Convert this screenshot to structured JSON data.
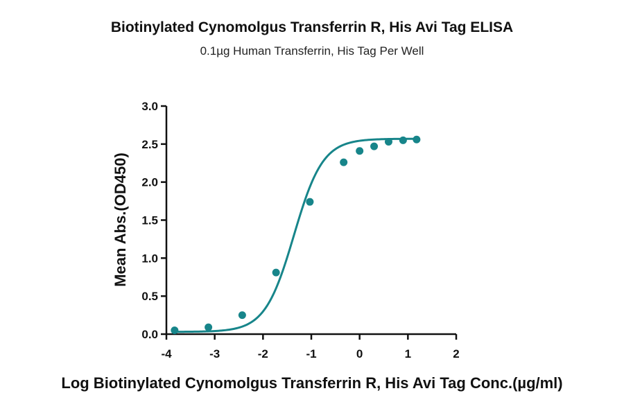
{
  "chart_data": {
    "type": "scatter",
    "title": "Biotinylated Cynomolgus Transferrin R, His Avi Tag ELISA",
    "subtitle": "0.1µg Human Transferrin, His Tag Per Well",
    "xlabel": "Log Biotinylated Cynomolgus Transferrin R, His Avi Tag Conc.(µg/ml)",
    "ylabel": "Mean Abs.(OD450)",
    "xlim": [
      -4,
      2
    ],
    "ylim": [
      0,
      3.0
    ],
    "x_ticks": [
      -4,
      -3,
      -2,
      -1,
      0,
      1,
      2
    ],
    "x_tick_labels": [
      "-4",
      "-3",
      "-2",
      "-1",
      "0",
      "1",
      "2"
    ],
    "y_ticks": [
      0.0,
      0.5,
      1.0,
      1.5,
      2.0,
      2.5,
      3.0
    ],
    "y_tick_labels": [
      "0.0",
      "0.5",
      "1.0",
      "1.5",
      "2.0",
      "2.5",
      "3.0"
    ],
    "color": "#17858a",
    "series": [
      {
        "x": [
          -3.83,
          -3.13,
          -2.43,
          -1.73,
          -1.03,
          -0.33,
          0.0,
          0.3,
          0.6,
          0.9,
          1.18
        ],
        "y": [
          0.05,
          0.09,
          0.25,
          0.81,
          1.74,
          2.26,
          2.41,
          2.47,
          2.53,
          2.55,
          2.56
        ]
      }
    ],
    "fit": {
      "type": "4PL",
      "bottom": 0.03,
      "top": 2.57,
      "logEC50": -1.36,
      "hill": 1.45
    }
  }
}
